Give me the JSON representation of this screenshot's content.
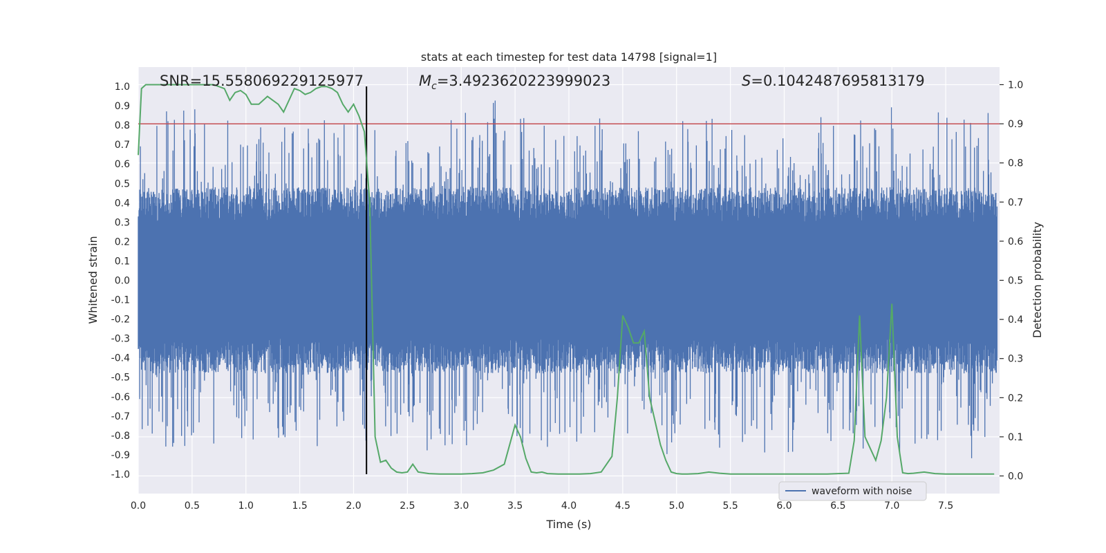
{
  "chart_data": {
    "type": "line",
    "title": "stats at each timestep for test data 14798 [signal=1]",
    "xlabel": "Time (s)",
    "ylabel": "Whitened strain",
    "y2label": "Detection probability",
    "xlim": [
      0,
      8
    ],
    "ylim": [
      -1.1,
      1.1
    ],
    "y2lim": [
      -0.045,
      1.045
    ],
    "xticks": [
      "0.0",
      "0.5",
      "1.0",
      "1.5",
      "2.0",
      "2.5",
      "3.0",
      "3.5",
      "4.0",
      "4.5",
      "5.0",
      "5.5",
      "6.0",
      "6.5",
      "7.0",
      "7.5"
    ],
    "yticks": [
      "1.0",
      "0.9",
      "0.8",
      "0.7",
      "0.6",
      "0.5",
      "0.4",
      "0.3",
      "0.2",
      "0.1",
      "0.0",
      "-0.1",
      "-0.2",
      "-0.3",
      "-0.4",
      "-0.5",
      "-0.6",
      "-0.7",
      "-0.8",
      "-0.9",
      "-1.0"
    ],
    "y2ticks": [
      "1.0",
      "0.9",
      "0.8",
      "0.7",
      "0.6",
      "0.5",
      "0.4",
      "0.3",
      "0.2",
      "0.1",
      "0.0"
    ],
    "annotations": {
      "snr": "SNR=15.558069229125977",
      "mc_symbol": "M",
      "mc_sub": "c",
      "mc_value": "=3.4923620223999023",
      "s_symbol": "S",
      "s_value": "=0.1042487695813179"
    },
    "threshold": {
      "value": 0.9,
      "axis": "right",
      "color": "#c44e52"
    },
    "event_time": 2.12,
    "legend": {
      "label": "waveform with noise",
      "location": "lower-right"
    },
    "series": [
      {
        "name": "waveform with noise",
        "axis": "left",
        "color": "#4c72b0",
        "typical_amplitude": 0.3,
        "peak_amplitude_range": [
          -0.99,
          0.99
        ]
      },
      {
        "name": "detection probability",
        "axis": "right",
        "color": "#55a868",
        "x": [
          0.0,
          0.03,
          0.07,
          0.12,
          0.2,
          0.3,
          0.4,
          0.5,
          0.6,
          0.7,
          0.8,
          0.85,
          0.9,
          0.95,
          1.0,
          1.05,
          1.12,
          1.2,
          1.3,
          1.35,
          1.4,
          1.45,
          1.5,
          1.55,
          1.6,
          1.65,
          1.7,
          1.75,
          1.8,
          1.85,
          1.9,
          1.95,
          2.0,
          2.05,
          2.1,
          2.15,
          2.2,
          2.25,
          2.3,
          2.35,
          2.4,
          2.45,
          2.5,
          2.55,
          2.6,
          2.7,
          2.8,
          2.9,
          3.0,
          3.1,
          3.2,
          3.3,
          3.4,
          3.5,
          3.55,
          3.6,
          3.65,
          3.7,
          3.75,
          3.8,
          3.9,
          4.0,
          4.1,
          4.2,
          4.3,
          4.4,
          4.45,
          4.5,
          4.55,
          4.6,
          4.65,
          4.7,
          4.75,
          4.8,
          4.85,
          4.9,
          4.95,
          5.0,
          5.05,
          5.1,
          5.2,
          5.3,
          5.4,
          5.5,
          5.6,
          5.7,
          5.8,
          5.9,
          6.0,
          6.1,
          6.2,
          6.3,
          6.4,
          6.5,
          6.6,
          6.65,
          6.7,
          6.75,
          6.8,
          6.85,
          6.9,
          6.95,
          7.0,
          7.05,
          7.1,
          7.15,
          7.2,
          7.3,
          7.4,
          7.5,
          7.6,
          7.7,
          7.8,
          7.95
        ],
        "y": [
          0.82,
          0.99,
          1.0,
          1.0,
          1.0,
          1.0,
          1.0,
          1.0,
          1.0,
          1.0,
          0.99,
          0.96,
          0.98,
          0.985,
          0.975,
          0.95,
          0.95,
          0.97,
          0.95,
          0.93,
          0.96,
          0.99,
          0.985,
          0.975,
          0.98,
          0.99,
          0.995,
          0.995,
          0.99,
          0.98,
          0.95,
          0.93,
          0.95,
          0.92,
          0.88,
          0.7,
          0.1,
          0.035,
          0.04,
          0.02,
          0.01,
          0.008,
          0.01,
          0.03,
          0.01,
          0.006,
          0.005,
          0.005,
          0.005,
          0.006,
          0.008,
          0.015,
          0.03,
          0.13,
          0.1,
          0.045,
          0.01,
          0.008,
          0.01,
          0.006,
          0.005,
          0.005,
          0.005,
          0.006,
          0.01,
          0.05,
          0.2,
          0.41,
          0.38,
          0.34,
          0.34,
          0.37,
          0.2,
          0.14,
          0.08,
          0.04,
          0.01,
          0.006,
          0.005,
          0.005,
          0.006,
          0.01,
          0.007,
          0.005,
          0.005,
          0.005,
          0.005,
          0.005,
          0.005,
          0.005,
          0.005,
          0.005,
          0.005,
          0.006,
          0.007,
          0.09,
          0.41,
          0.1,
          0.07,
          0.04,
          0.09,
          0.2,
          0.44,
          0.1,
          0.008,
          0.006,
          0.007,
          0.01,
          0.006,
          0.005,
          0.005,
          0.005,
          0.005,
          0.005
        ]
      }
    ]
  }
}
